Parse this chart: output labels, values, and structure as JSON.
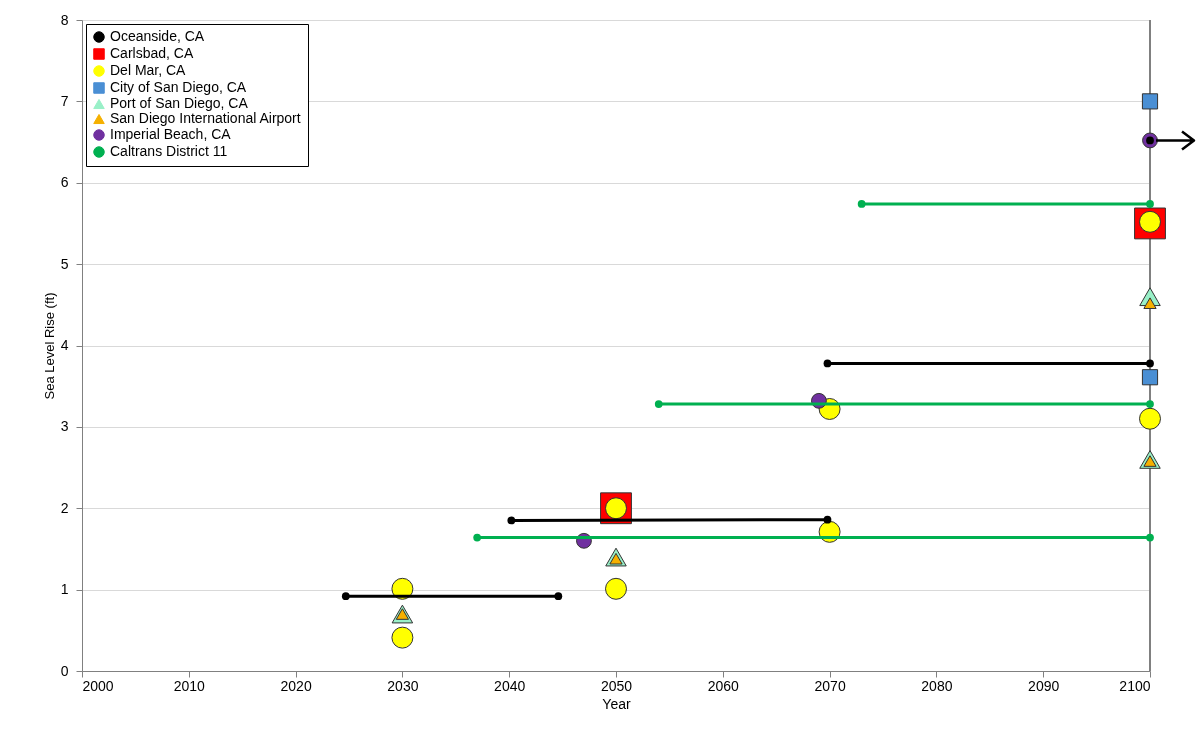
{
  "chart_data": {
    "type": "scatter",
    "xlabel": "Year",
    "ylabel": "Sea Level Rise (ft)",
    "xlim": [
      2000,
      2100
    ],
    "xticks": [
      2000,
      2010,
      2020,
      2030,
      2040,
      2050,
      2060,
      2070,
      2080,
      2090,
      2100
    ],
    "ylim": [
      0,
      8
    ],
    "yticks": [
      0,
      1,
      2,
      3,
      4,
      5,
      6,
      7,
      8
    ],
    "grid": "y",
    "legend": "top left",
    "ref_lines": [
      {
        "axis": "x",
        "value": 2100,
        "color": "#808080"
      }
    ],
    "series": [
      {
        "name": "Oceanside, CA",
        "type": "line",
        "color": "#000000",
        "marker": "circle",
        "x": [
          2024.7,
          2044.6,
          null,
          2040.2,
          2069.8,
          null,
          2069.8,
          2100,
          null,
          2100
        ],
        "values": [
          0.92,
          0.92,
          null,
          1.85,
          1.86,
          null,
          3.78,
          3.78,
          null,
          6.52
        ]
      },
      {
        "name": "Carlsbad, CA",
        "color": "#ff0000",
        "marker": "square",
        "x": [
          2050,
          2100
        ],
        "values": [
          2.0,
          5.5
        ]
      },
      {
        "name": "Del Mar, CA",
        "color": "#ffff00",
        "marker": "circle",
        "x": [
          2030,
          2030,
          2050,
          2050,
          2070,
          2070,
          2100,
          2100
        ],
        "values": [
          1.01,
          0.41,
          2.0,
          1.01,
          1.71,
          3.22,
          3.1,
          5.52
        ]
      },
      {
        "name": "City of San Diego, CA",
        "color": "#4a8fd4",
        "marker": "square",
        "x": [
          2100,
          2100
        ],
        "values": [
          7.0,
          3.61
        ]
      },
      {
        "name": "Port of San Diego, CA",
        "color": "#99f0c8",
        "marker": "triangle",
        "x": [
          2030,
          2050,
          2100,
          2100
        ],
        "values": [
          0.7,
          1.4,
          2.6,
          4.6
        ]
      },
      {
        "name": "San Diego International Airport",
        "color": "#f5b000",
        "marker": "triangle",
        "x": [
          2030,
          2050,
          2100,
          2100
        ],
        "values": [
          0.7,
          1.38,
          2.58,
          4.52
        ]
      },
      {
        "name": "Imperial Beach, CA",
        "color": "#7030a0",
        "marker": "circle",
        "x": [
          2047,
          2069,
          2100
        ],
        "values": [
          1.6,
          3.32,
          6.52
        ]
      },
      {
        "name": "Caltrans District 11",
        "type": "line",
        "color": "#00b050",
        "marker": "circle",
        "x": [
          2037,
          2100,
          null,
          2054,
          2100,
          null,
          2073,
          2100
        ],
        "values": [
          1.64,
          1.64,
          null,
          3.28,
          3.28,
          null,
          5.74,
          5.74
        ]
      }
    ]
  }
}
